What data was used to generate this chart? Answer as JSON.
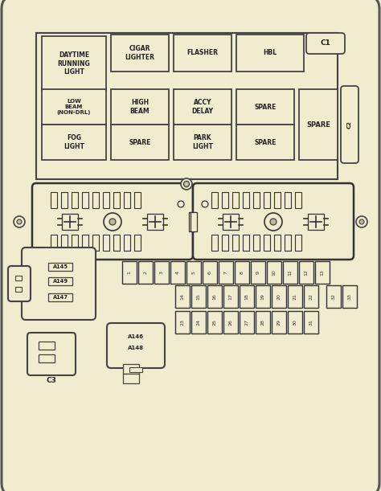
{
  "bg_color": "#f0ecd0",
  "border_color": "#444444",
  "line_color": "#444444",
  "fig_width": 4.74,
  "fig_height": 6.11,
  "relay_labels_row1": [
    "DAYTIME\nRUNNING\nLIGHT",
    "CIGAR\nLIGHTER",
    "FLASHER",
    "HBL"
  ],
  "relay_labels_row2": [
    "LOW\nBEAM\n(NON-DRL)",
    "HIGH\nBEAM",
    "ACCY\nDELAY",
    "SPARE"
  ],
  "relay_labels_row3": [
    "FOG\nLIGHT",
    "SPARE",
    "PARK\nLIGHT",
    "SPARE"
  ],
  "relay_right_big": "SPARE",
  "fuse_numbers_row1": [
    "1",
    "2",
    "3",
    "4",
    "5",
    "6",
    "7",
    "8",
    "9",
    "10",
    "11",
    "12",
    "13"
  ],
  "fuse_numbers_row2": [
    "14",
    "15",
    "16",
    "17",
    "18",
    "19",
    "20",
    "21",
    "22"
  ],
  "fuse_numbers_row3": [
    "23",
    "24",
    "25",
    "26",
    "27",
    "28",
    "29",
    "30",
    "31"
  ],
  "fuse_numbers_extra": [
    "32",
    "33"
  ],
  "side_labels_left": [
    "A145",
    "A149",
    "A147"
  ],
  "connector_bottom_left": "C3",
  "connector_top_right": "C1",
  "connector_right": "C2",
  "bottom_connector_labels": [
    "A146",
    "A148"
  ]
}
